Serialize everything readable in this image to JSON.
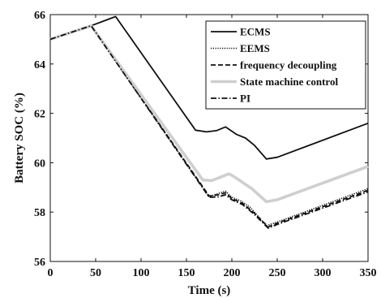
{
  "chart_data": {
    "type": "line",
    "title": "",
    "xlabel": "Time (s)",
    "ylabel": "Battery SOC (%)",
    "xlim": [
      0,
      350
    ],
    "ylim": [
      56,
      66
    ],
    "xticks": [
      0,
      50,
      100,
      150,
      200,
      250,
      300,
      350
    ],
    "yticks": [
      56,
      58,
      60,
      62,
      64,
      66
    ],
    "grid": false,
    "legend_position": "top-right",
    "series": [
      {
        "name": "ECMS",
        "color": "#111111",
        "style": "solid",
        "points": [
          [
            0,
            65.0
          ],
          [
            45,
            65.55
          ],
          [
            72,
            65.92
          ],
          [
            160,
            61.32
          ],
          [
            172,
            61.25
          ],
          [
            183,
            61.3
          ],
          [
            193,
            61.45
          ],
          [
            199,
            61.3
          ],
          [
            205,
            61.15
          ],
          [
            215,
            61.0
          ],
          [
            225,
            60.7
          ],
          [
            238,
            60.15
          ],
          [
            250,
            60.22
          ],
          [
            350,
            61.6
          ]
        ]
      },
      {
        "name": "EEMS",
        "color": "#111111",
        "style": "dotted",
        "points": [
          [
            0,
            65.0
          ],
          [
            45,
            65.55
          ],
          [
            175,
            58.62
          ],
          [
            182,
            58.72
          ],
          [
            193,
            58.85
          ],
          [
            200,
            58.6
          ],
          [
            210,
            58.45
          ],
          [
            220,
            58.2
          ],
          [
            238,
            57.45
          ],
          [
            250,
            57.6
          ],
          [
            350,
            58.95
          ]
        ]
      },
      {
        "name": "frequency decoupling",
        "color": "#111111",
        "style": "dashed",
        "points": [
          [
            0,
            65.0
          ],
          [
            45,
            65.55
          ],
          [
            175,
            58.65
          ],
          [
            185,
            58.7
          ],
          [
            193,
            58.78
          ],
          [
            200,
            58.55
          ],
          [
            212,
            58.35
          ],
          [
            225,
            57.95
          ],
          [
            240,
            57.4
          ],
          [
            250,
            57.55
          ],
          [
            350,
            58.88
          ]
        ]
      },
      {
        "name": "State machine control",
        "color": "#cfcfcf",
        "style": "solid-thick",
        "points": [
          [
            0,
            65.0
          ],
          [
            45,
            65.55
          ],
          [
            168,
            59.3
          ],
          [
            178,
            59.28
          ],
          [
            190,
            59.45
          ],
          [
            197,
            59.55
          ],
          [
            203,
            59.42
          ],
          [
            212,
            59.2
          ],
          [
            222,
            58.95
          ],
          [
            238,
            58.42
          ],
          [
            250,
            58.5
          ],
          [
            350,
            59.85
          ]
        ]
      },
      {
        "name": "PI",
        "color": "#111111",
        "style": "dashdot",
        "points": [
          [
            0,
            65.0
          ],
          [
            45,
            65.55
          ],
          [
            175,
            58.6
          ],
          [
            185,
            58.62
          ],
          [
            193,
            58.7
          ],
          [
            200,
            58.5
          ],
          [
            212,
            58.3
          ],
          [
            225,
            57.9
          ],
          [
            240,
            57.35
          ],
          [
            250,
            57.5
          ],
          [
            350,
            58.82
          ]
        ]
      }
    ]
  }
}
